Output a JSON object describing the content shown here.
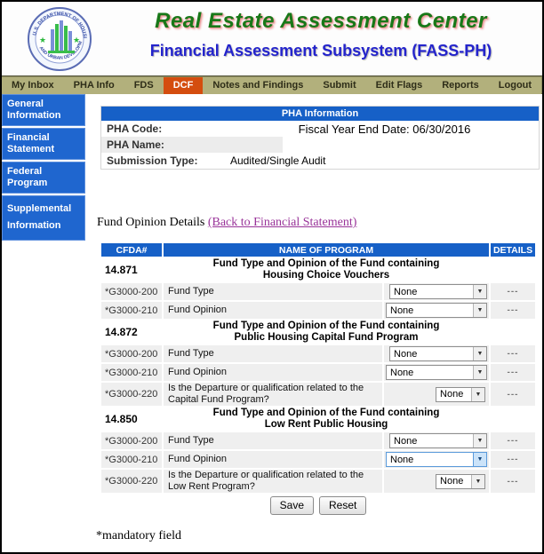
{
  "header": {
    "title": "Real Estate Assessment Center",
    "subtitle": "Financial Assessment Subsystem (FASS-PH)",
    "logo_alt": "U.S. DEPARTMENT OF HOUSING AND URBAN DEVELOPMENT"
  },
  "nav": {
    "items": [
      {
        "label": "My Inbox",
        "active": false
      },
      {
        "label": "PHA Info",
        "active": false
      },
      {
        "label": "FDS",
        "active": false
      },
      {
        "label": "DCF",
        "active": true
      },
      {
        "label": "Notes and Findings",
        "active": false
      },
      {
        "label": "Submit",
        "active": false
      },
      {
        "label": "Edit Flags",
        "active": false
      },
      {
        "label": "Reports",
        "active": false
      },
      {
        "label": "Logout",
        "active": false
      }
    ]
  },
  "sidebar": {
    "items": [
      {
        "label": "General Information"
      },
      {
        "label": "Financial Statement"
      },
      {
        "label": "Federal Program"
      },
      {
        "label": "Supplemental Information"
      }
    ]
  },
  "pha_panel": {
    "title": "PHA Information",
    "fields": [
      {
        "label": "PHA Code:",
        "value": ""
      },
      {
        "label": "PHA Name:",
        "value": ""
      },
      {
        "label": "Submission Type:",
        "value": "Audited/Single Audit"
      }
    ],
    "fiscal_year_text": "Fiscal Year End Date: 06/30/2016"
  },
  "details_heading": {
    "text": "Fund Opinion Details",
    "link": "(Back to Financial Statement)"
  },
  "table": {
    "col_cfda": "CFDA#",
    "col_name": "NAME OF PROGRAM",
    "col_details": "DETAILS",
    "sections": [
      {
        "cfda": "14.871",
        "title1": "Fund Type and Opinion of the Fund containing",
        "title2": "Housing Choice Vouchers",
        "rows": [
          {
            "code": "*G3000-200",
            "label": "Fund Type",
            "select": "None",
            "kind": "type",
            "focused": false,
            "details": "---"
          },
          {
            "code": "*G3000-210",
            "label": "Fund Opinion",
            "select": "None",
            "kind": "opinion",
            "focused": false,
            "details": "---"
          }
        ]
      },
      {
        "cfda": "14.872",
        "title1": "Fund Type and Opinion of the Fund containing",
        "title2": "Public Housing Capital Fund Program",
        "rows": [
          {
            "code": "*G3000-200",
            "label": "Fund Type",
            "select": "None",
            "kind": "type",
            "focused": false,
            "details": "---"
          },
          {
            "code": "*G3000-210",
            "label": "Fund Opinion",
            "select": "None",
            "kind": "opinion",
            "focused": false,
            "details": "---"
          },
          {
            "code": "*G3000-220",
            "label": "Is the Departure or qualification related to the Capital Fund Program?",
            "select": "None",
            "kind": "small",
            "focused": false,
            "details": "---"
          }
        ]
      },
      {
        "cfda": "14.850",
        "title1": "Fund Type and Opinion of the Fund containing",
        "title2": "Low Rent Public Housing",
        "rows": [
          {
            "code": "*G3000-200",
            "label": "Fund Type",
            "select": "None",
            "kind": "type",
            "focused": false,
            "details": "---"
          },
          {
            "code": "*G3000-210",
            "label": "Fund Opinion",
            "select": "None",
            "kind": "opinion",
            "focused": true,
            "details": "---"
          },
          {
            "code": "*G3000-220",
            "label": "Is the Departure or qualification related to the Low Rent Program?",
            "select": "None",
            "kind": "small",
            "focused": false,
            "details": "---"
          }
        ]
      }
    ]
  },
  "buttons": {
    "save": "Save",
    "reset": "Reset"
  },
  "footnote": {
    "text": "*mandatory field"
  },
  "colors": {
    "blue": "#1660c7",
    "nav_light": "#b2b07c",
    "nav_dark": "#8e8d60",
    "dcf_orange": "#d44d0e",
    "row_gray": "#efefef",
    "link_purple": "#993399",
    "title_green": "#187818",
    "subtitle_blue": "#2424cc"
  }
}
